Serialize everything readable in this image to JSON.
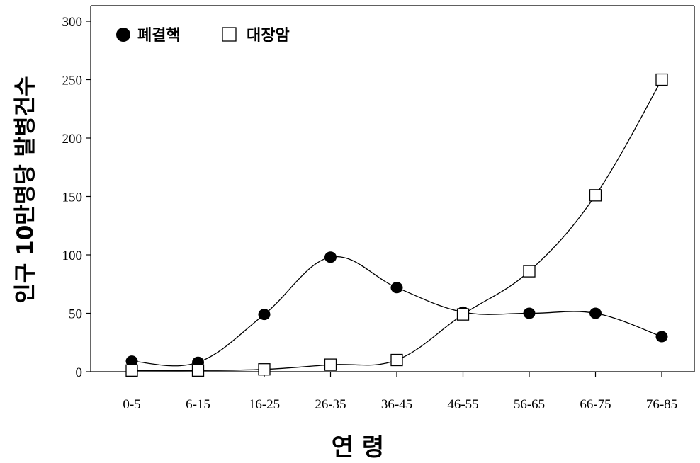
{
  "chart_data": {
    "type": "line",
    "title": "",
    "xlabel": "연 령",
    "ylabel": "인구 10만명당 발병건수",
    "categories": [
      "0-5",
      "6-15",
      "16-25",
      "26-35",
      "36-45",
      "46-55",
      "56-65",
      "66-75",
      "76-85"
    ],
    "ylim": [
      0,
      300
    ],
    "yticks": [
      0,
      50,
      100,
      150,
      200,
      250,
      300
    ],
    "grid": false,
    "legend_position": "top-left",
    "series": [
      {
        "name": "폐결핵",
        "marker": "filled-circle",
        "color": "#000000",
        "values": [
          9,
          8,
          49,
          98,
          72,
          51,
          50,
          50,
          30
        ]
      },
      {
        "name": "대장암",
        "marker": "open-square",
        "color": "#000000",
        "values": [
          1,
          1,
          2,
          6,
          10,
          49,
          86,
          151,
          250
        ]
      }
    ]
  }
}
